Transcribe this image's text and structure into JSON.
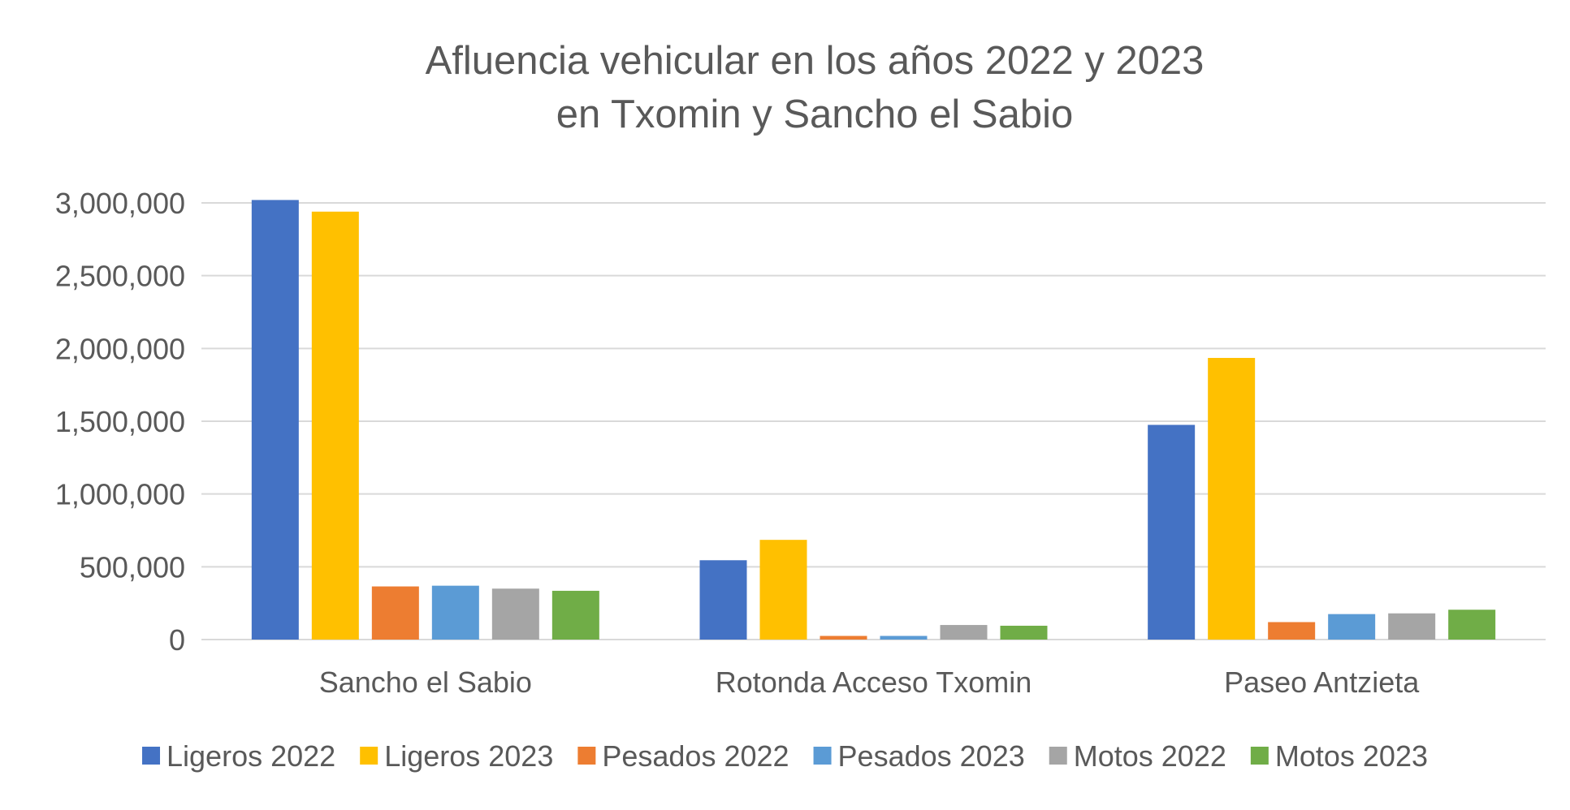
{
  "chart_data": {
    "type": "bar",
    "title": "Afluencia vehicular en los años 2022 y 2023 en Txomin y Sancho el Sabio",
    "title_lines": [
      "Afluencia vehicular en los años 2022 y 2023",
      "en Txomin y Sancho el Sabio"
    ],
    "categories": [
      "Sancho el Sabio",
      "Rotonda Acceso Txomin",
      "Paseo Antzieta"
    ],
    "series": [
      {
        "name": "Ligeros 2022",
        "color": "#4472C4",
        "values": [
          3020000,
          545000,
          1475000
        ]
      },
      {
        "name": "Ligeros 2023",
        "color": "#FFC000",
        "values": [
          2940000,
          685000,
          1935000
        ]
      },
      {
        "name": "Pesados 2022",
        "color": "#ED7D31",
        "values": [
          365000,
          25000,
          120000
        ]
      },
      {
        "name": "Pesados 2023",
        "color": "#5B9BD5",
        "values": [
          370000,
          25000,
          175000
        ]
      },
      {
        "name": "Motos 2022",
        "color": "#A5A5A5",
        "values": [
          350000,
          100000,
          180000
        ]
      },
      {
        "name": "Motos 2023",
        "color": "#70AD47",
        "values": [
          335000,
          95000,
          205000
        ]
      }
    ],
    "yticks": [
      0,
      500000,
      1000000,
      1500000,
      2000000,
      2500000,
      3000000
    ],
    "ytick_labels": [
      "0",
      "500,000",
      "1,000,000",
      "1,500,000",
      "2,000,000",
      "2,500,000",
      "3,000,000"
    ],
    "ylim": [
      0,
      3000000
    ],
    "xlabel": "",
    "ylabel": "",
    "grid": true,
    "legend_position": "bottom"
  }
}
